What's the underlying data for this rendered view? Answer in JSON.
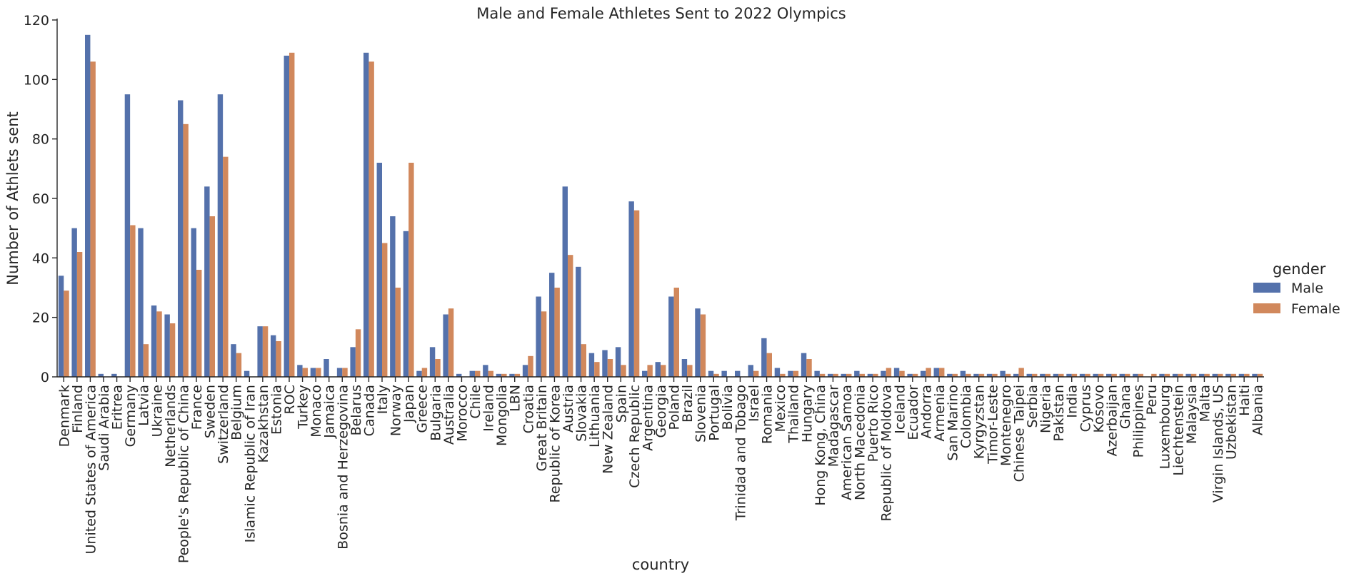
{
  "colors": {
    "male": "#5471ab",
    "female": "#d1885c"
  },
  "chart_data": {
    "type": "bar",
    "title": "Male and Female Athletes Sent to 2022 Olympics",
    "xlabel": "country",
    "ylabel": "Number of Athlets sent",
    "ylim": [
      0,
      120
    ],
    "yticks": [
      0,
      20,
      40,
      60,
      80,
      100,
      120
    ],
    "grid": false,
    "legend": {
      "title": "gender",
      "placement": "right"
    },
    "categories": [
      "Denmark",
      "Finland",
      "United States of America",
      "Saudi Arabia",
      "Eritrea",
      "Germany",
      "Latvia",
      "Ukraine",
      "Netherlands",
      "People's Republic of China",
      "France",
      "Sweden",
      "Switzerland",
      "Belgium",
      "Islamic Republic of Iran",
      "Kazakhstan",
      "Estonia",
      "ROC",
      "Turkey",
      "Monaco",
      "Jamaica",
      "Bosnia and Herzegovina",
      "Belarus",
      "Canada",
      "Italy",
      "Norway",
      "Japan",
      "Greece",
      "Bulgaria",
      "Australia",
      "Morocco",
      "Chile",
      "Ireland",
      "Mongolia",
      "LBN",
      "Croatia",
      "Great Britain",
      "Republic of Korea",
      "Austria",
      "Slovakia",
      "Lithuania",
      "New Zealand",
      "Spain",
      "Czech Republic",
      "Argentina",
      "Georgia",
      "Poland",
      "Brazil",
      "Slovenia",
      "Portugal",
      "Bolivia",
      "Trinidad and Tobago",
      "Israel",
      "Romania",
      "Mexico",
      "Thailand",
      "Hungary",
      "Hong Kong, China",
      "Madagascar",
      "American Samoa",
      "North Macedonia",
      "Puerto Rico",
      "Republic of Moldova",
      "Iceland",
      "Ecuador",
      "Andorra",
      "Armenia",
      "San Marino",
      "Colombia",
      "Kyrgyzstan",
      "Timor-Leste",
      "Montenegro",
      "Chinese Taipei",
      "Serbia",
      "Nigeria",
      "Pakistan",
      "India",
      "Cyprus",
      "Kosovo",
      "Azerbaijan",
      "Ghana",
      "Philippines",
      "Peru",
      "Luxembourg",
      "Liechtenstein",
      "Malaysia",
      "Malta",
      "Virgin Islands, US",
      "Uzbekistan",
      "Haiti",
      "Albania"
    ],
    "series": [
      {
        "name": "Male",
        "values": [
          34,
          50,
          115,
          1,
          1,
          95,
          50,
          24,
          21,
          93,
          50,
          64,
          95,
          11,
          2,
          17,
          14,
          108,
          4,
          3,
          6,
          3,
          10,
          109,
          72,
          54,
          49,
          2,
          10,
          21,
          1,
          2,
          4,
          1,
          1,
          4,
          27,
          35,
          64,
          37,
          8,
          9,
          10,
          59,
          2,
          5,
          27,
          6,
          23,
          2,
          2,
          2,
          4,
          13,
          3,
          2,
          8,
          2,
          1,
          1,
          2,
          1,
          2,
          3,
          1,
          2,
          3,
          1,
          2,
          1,
          1,
          2,
          1,
          1,
          1,
          1,
          1,
          1,
          1,
          1,
          1,
          1,
          0,
          1,
          1,
          1,
          1,
          1,
          1,
          1,
          1
        ]
      },
      {
        "name": "Female",
        "values": [
          29,
          42,
          106,
          0,
          0,
          51,
          11,
          22,
          18,
          85,
          36,
          54,
          74,
          8,
          0,
          17,
          12,
          109,
          3,
          3,
          0,
          3,
          16,
          106,
          45,
          30,
          72,
          3,
          6,
          23,
          0,
          2,
          2,
          1,
          1,
          7,
          22,
          30,
          41,
          11,
          5,
          6,
          4,
          56,
          4,
          4,
          30,
          4,
          21,
          1,
          0,
          0,
          2,
          8,
          1,
          2,
          6,
          1,
          1,
          1,
          1,
          1,
          3,
          2,
          1,
          3,
          3,
          1,
          1,
          1,
          1,
          1,
          3,
          1,
          1,
          1,
          1,
          1,
          1,
          1,
          1,
          1,
          1,
          1,
          1,
          1,
          1,
          1,
          1,
          1,
          1
        ]
      }
    ]
  }
}
